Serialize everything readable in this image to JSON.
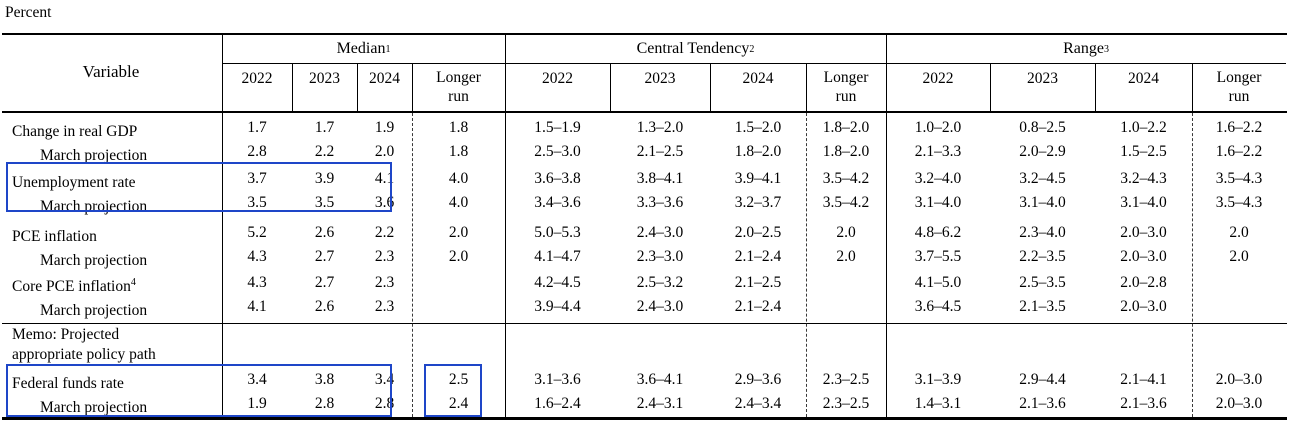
{
  "page": {
    "unit_label": "Percent"
  },
  "colors": {
    "highlight_box": "#1e46c8",
    "rule": "#000000",
    "dashed_rule": "#3a3a3a",
    "text": "#000000",
    "background": "#ffffff"
  },
  "table": {
    "variable_header": "Variable",
    "column_groups": [
      {
        "label": "Median",
        "footnote": "1"
      },
      {
        "label": "Central Tendency",
        "footnote": "2"
      },
      {
        "label": "Range",
        "footnote": "3"
      }
    ],
    "years": [
      "2022",
      "2023",
      "2024"
    ],
    "longer_run_label": "Longer run",
    "memo": {
      "line1": "Memo: Projected",
      "line2": "appropriate policy path"
    },
    "rows": [
      {
        "label": "Change in real GDP",
        "indent": false,
        "median": [
          "1.7",
          "1.7",
          "1.9"
        ],
        "median_longer_run": "1.8",
        "central_tendency": [
          "1.5–1.9",
          "1.3–2.0",
          "1.5–2.0"
        ],
        "central_tendency_longer_run": "1.8–2.0",
        "range": [
          "1.0–2.0",
          "0.8–2.5",
          "1.0–2.2"
        ],
        "range_longer_run": "1.6–2.2"
      },
      {
        "label": "March projection",
        "indent": true,
        "median": [
          "2.8",
          "2.2",
          "2.0"
        ],
        "median_longer_run": "1.8",
        "central_tendency": [
          "2.5–3.0",
          "2.1–2.5",
          "1.8–2.0"
        ],
        "central_tendency_longer_run": "1.8–2.0",
        "range": [
          "2.1–3.3",
          "2.0–2.9",
          "1.5–2.5"
        ],
        "range_longer_run": "1.6–2.2"
      },
      {
        "label": "Unemployment rate",
        "indent": false,
        "median": [
          "3.7",
          "3.9",
          "4.1"
        ],
        "median_longer_run": "4.0",
        "central_tendency": [
          "3.6–3.8",
          "3.8–4.1",
          "3.9–4.1"
        ],
        "central_tendency_longer_run": "3.5–4.2",
        "range": [
          "3.2–4.0",
          "3.2–4.5",
          "3.2–4.3"
        ],
        "range_longer_run": "3.5–4.3"
      },
      {
        "label": "March projection",
        "indent": true,
        "median": [
          "3.5",
          "3.5",
          "3.6"
        ],
        "median_longer_run": "4.0",
        "central_tendency": [
          "3.4–3.6",
          "3.3–3.6",
          "3.2–3.7"
        ],
        "central_tendency_longer_run": "3.5–4.2",
        "range": [
          "3.1–4.0",
          "3.1–4.0",
          "3.1–4.0"
        ],
        "range_longer_run": "3.5–4.3"
      },
      {
        "label": "PCE inflation",
        "indent": false,
        "median": [
          "5.2",
          "2.6",
          "2.2"
        ],
        "median_longer_run": "2.0",
        "central_tendency": [
          "5.0–5.3",
          "2.4–3.0",
          "2.0–2.5"
        ],
        "central_tendency_longer_run": "2.0",
        "range": [
          "4.8–6.2",
          "2.3–4.0",
          "2.0–3.0"
        ],
        "range_longer_run": "2.0"
      },
      {
        "label": "March projection",
        "indent": true,
        "median": [
          "4.3",
          "2.7",
          "2.3"
        ],
        "median_longer_run": "2.0",
        "central_tendency": [
          "4.1–4.7",
          "2.3–3.0",
          "2.1–2.4"
        ],
        "central_tendency_longer_run": "2.0",
        "range": [
          "3.7–5.5",
          "2.2–3.5",
          "2.0–3.0"
        ],
        "range_longer_run": "2.0"
      },
      {
        "label": "Core PCE inflation",
        "footnote": "4",
        "indent": false,
        "median": [
          "4.3",
          "2.7",
          "2.3"
        ],
        "median_longer_run": "",
        "central_tendency": [
          "4.2–4.5",
          "2.5–3.2",
          "2.1–2.5"
        ],
        "central_tendency_longer_run": "",
        "range": [
          "4.1–5.0",
          "2.5–3.5",
          "2.0–2.8"
        ],
        "range_longer_run": ""
      },
      {
        "label": "March projection",
        "indent": true,
        "median": [
          "4.1",
          "2.6",
          "2.3"
        ],
        "median_longer_run": "",
        "central_tendency": [
          "3.9–4.4",
          "2.4–3.0",
          "2.1–2.4"
        ],
        "central_tendency_longer_run": "",
        "range": [
          "3.6–4.5",
          "2.1–3.5",
          "2.0–3.0"
        ],
        "range_longer_run": ""
      },
      {
        "label": "Federal funds rate",
        "indent": false,
        "median": [
          "3.4",
          "3.8",
          "3.4"
        ],
        "median_longer_run": "2.5",
        "central_tendency": [
          "3.1–3.6",
          "3.6–4.1",
          "2.9–3.6"
        ],
        "central_tendency_longer_run": "2.3–2.5",
        "range": [
          "3.1–3.9",
          "2.9–4.4",
          "2.1–4.1"
        ],
        "range_longer_run": "2.0–3.0"
      },
      {
        "label": "March projection",
        "indent": true,
        "median": [
          "1.9",
          "2.8",
          "2.8"
        ],
        "median_longer_run": "2.4",
        "central_tendency": [
          "1.6–2.4",
          "2.4–3.1",
          "2.4–3.4"
        ],
        "central_tendency_longer_run": "2.3–2.5",
        "range": [
          "1.4–3.1",
          "2.1–3.6",
          "2.1–3.6"
        ],
        "range_longer_run": "2.0–3.0"
      }
    ]
  }
}
